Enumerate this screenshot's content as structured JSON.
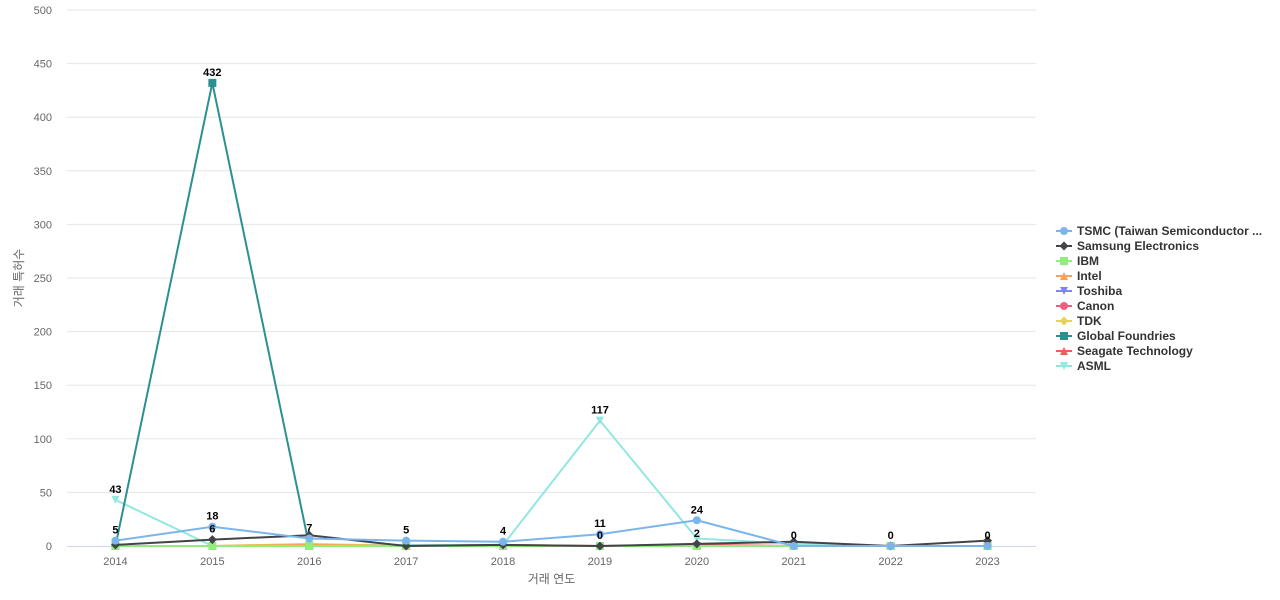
{
  "chart_data": {
    "type": "line",
    "xlabel": "거래 연도",
    "ylabel": "거래 특허수",
    "ylim": [
      0,
      500
    ],
    "yticks": [
      0,
      50,
      100,
      150,
      200,
      250,
      300,
      350,
      400,
      450,
      500
    ],
    "grid": true,
    "legend_position": "right",
    "categories": [
      "2014",
      "2015",
      "2016",
      "2017",
      "2018",
      "2019",
      "2020",
      "2021",
      "2022",
      "2023"
    ],
    "series": [
      {
        "name": "TSMC (Taiwan Semiconductor ...",
        "color": "#7cb5ec",
        "marker": "circle",
        "values": [
          5,
          18,
          7,
          5,
          4,
          11,
          24,
          0,
          0,
          0
        ],
        "labels": [
          "5",
          "18",
          "7",
          "5",
          "4",
          "11",
          "24",
          "0",
          "0",
          "0"
        ]
      },
      {
        "name": "Samsung Electronics",
        "color": "#434348",
        "marker": "diamond",
        "values": [
          1,
          6,
          10,
          0,
          1,
          0,
          2,
          4,
          0,
          5
        ],
        "labels": [
          "",
          "6",
          "",
          "",
          "",
          "0",
          "2",
          "",
          "",
          ""
        ]
      },
      {
        "name": "IBM",
        "color": "#90ed7d",
        "marker": "square",
        "values": [
          0,
          0,
          0,
          0,
          0,
          0,
          0,
          0,
          0,
          0
        ]
      },
      {
        "name": "Intel",
        "color": "#f7a35c",
        "marker": "triangle",
        "values": [
          0,
          0,
          1,
          0,
          0,
          0,
          0,
          0,
          0,
          0
        ]
      },
      {
        "name": "Toshiba",
        "color": "#8085e9",
        "marker": "triangle-down",
        "values": [
          0,
          0,
          0,
          0,
          0,
          0,
          0,
          0,
          0,
          0
        ]
      },
      {
        "name": "Canon",
        "color": "#f15c80",
        "marker": "circle",
        "values": [
          0,
          0,
          0,
          0,
          0,
          0,
          0,
          0,
          0,
          0
        ]
      },
      {
        "name": "TDK",
        "color": "#e4d354",
        "marker": "diamond",
        "values": [
          0,
          0,
          2,
          0,
          0,
          0,
          0,
          0,
          0,
          0
        ]
      },
      {
        "name": "Global Foundries",
        "color": "#2b908f",
        "marker": "square",
        "values": [
          0,
          432,
          0,
          0,
          0,
          0,
          0,
          0,
          0,
          0
        ],
        "labels": [
          "",
          "432",
          "",
          "",
          "",
          "",
          "",
          "",
          "",
          ""
        ]
      },
      {
        "name": "Seagate Technology",
        "color": "#f45b5b",
        "marker": "triangle",
        "values": [
          0,
          0,
          0,
          0,
          1,
          0,
          1,
          0,
          0,
          0
        ]
      },
      {
        "name": "ASML",
        "color": "#91e8e1",
        "marker": "triangle-down",
        "values": [
          43,
          0,
          1,
          1,
          1,
          117,
          7,
          2,
          0,
          0
        ],
        "labels": [
          "43",
          "",
          "",
          "",
          "",
          "117",
          "",
          "",
          "",
          ""
        ]
      }
    ]
  }
}
